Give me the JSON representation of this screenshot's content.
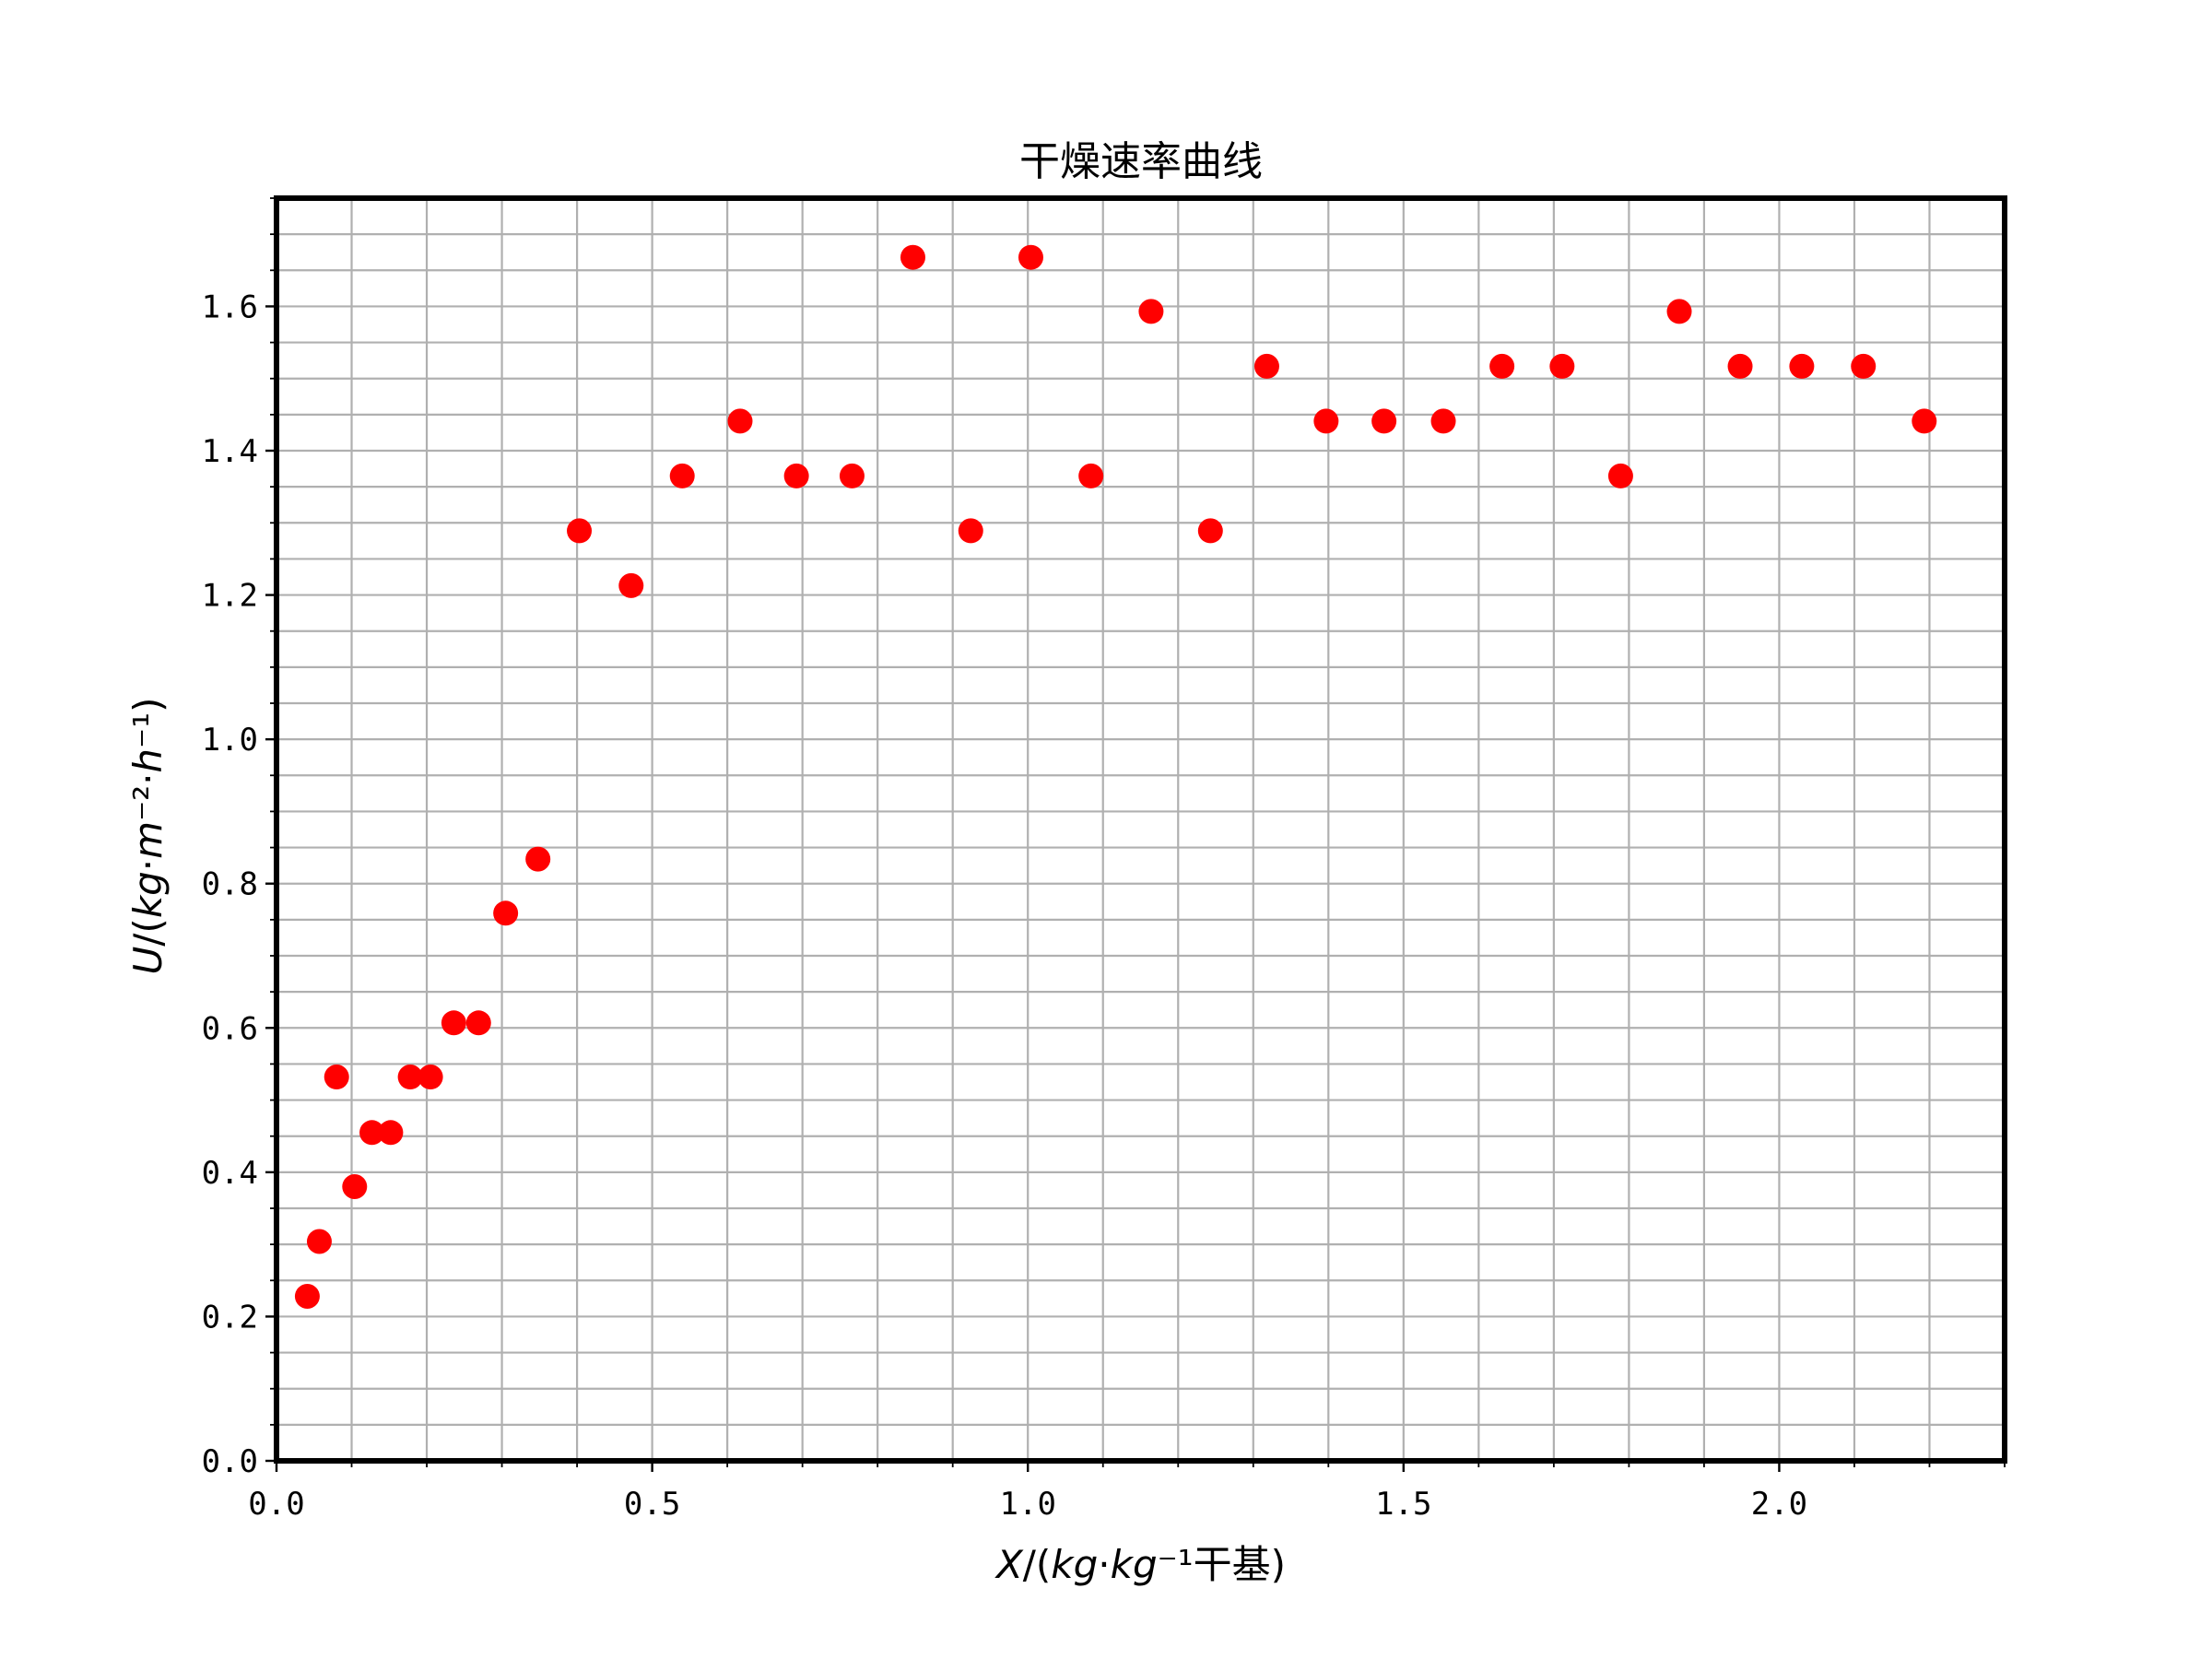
{
  "chart_data": {
    "type": "scatter",
    "title": "干燥速率曲线",
    "xlabel": "X/(kg·kg⁻¹干基)",
    "ylabel": "U/(kg·m⁻²·h⁻¹)",
    "xlim": [
      0.0,
      2.3
    ],
    "ylim": [
      0.0,
      1.75
    ],
    "x_ticks": [
      0.0,
      0.5,
      1.0,
      1.5,
      2.0
    ],
    "y_ticks": [
      0.0,
      0.2,
      0.4,
      0.6,
      0.8,
      1.0,
      1.2,
      1.4,
      1.6
    ],
    "x_tick_labels": [
      "0.0",
      "0.5",
      "1.0",
      "1.5",
      "2.0"
    ],
    "y_tick_labels": [
      "0.0",
      "0.2",
      "0.4",
      "0.6",
      "0.8",
      "1.0",
      "1.2",
      "1.4",
      "1.6"
    ],
    "x_minor_step": 0.1,
    "y_minor_step": 0.05,
    "grid": true,
    "marker_color": "#ff0000",
    "grid_color": "#b0b0b0",
    "series": [
      {
        "x": [
          0.041,
          0.057,
          0.08,
          0.104,
          0.127,
          0.152,
          0.178,
          0.205,
          0.236,
          0.269,
          0.305,
          0.348,
          0.403,
          0.472,
          0.54,
          0.617,
          0.692,
          0.766,
          0.847,
          0.924,
          1.004,
          1.084,
          1.164,
          1.243,
          1.318,
          1.397,
          1.474,
          1.553,
          1.631,
          1.711,
          1.789,
          1.867,
          1.948,
          2.03,
          2.112,
          2.193
        ],
        "y": [
          0.228,
          0.304,
          0.532,
          0.38,
          0.455,
          0.455,
          0.532,
          0.532,
          0.607,
          0.607,
          0.759,
          0.834,
          1.289,
          1.213,
          1.365,
          1.441,
          1.365,
          1.365,
          1.668,
          1.289,
          1.668,
          1.365,
          1.593,
          1.289,
          1.517,
          1.441,
          1.441,
          1.441,
          1.517,
          1.517,
          1.365,
          1.593,
          1.517,
          1.517,
          1.517,
          1.441
        ]
      }
    ]
  }
}
